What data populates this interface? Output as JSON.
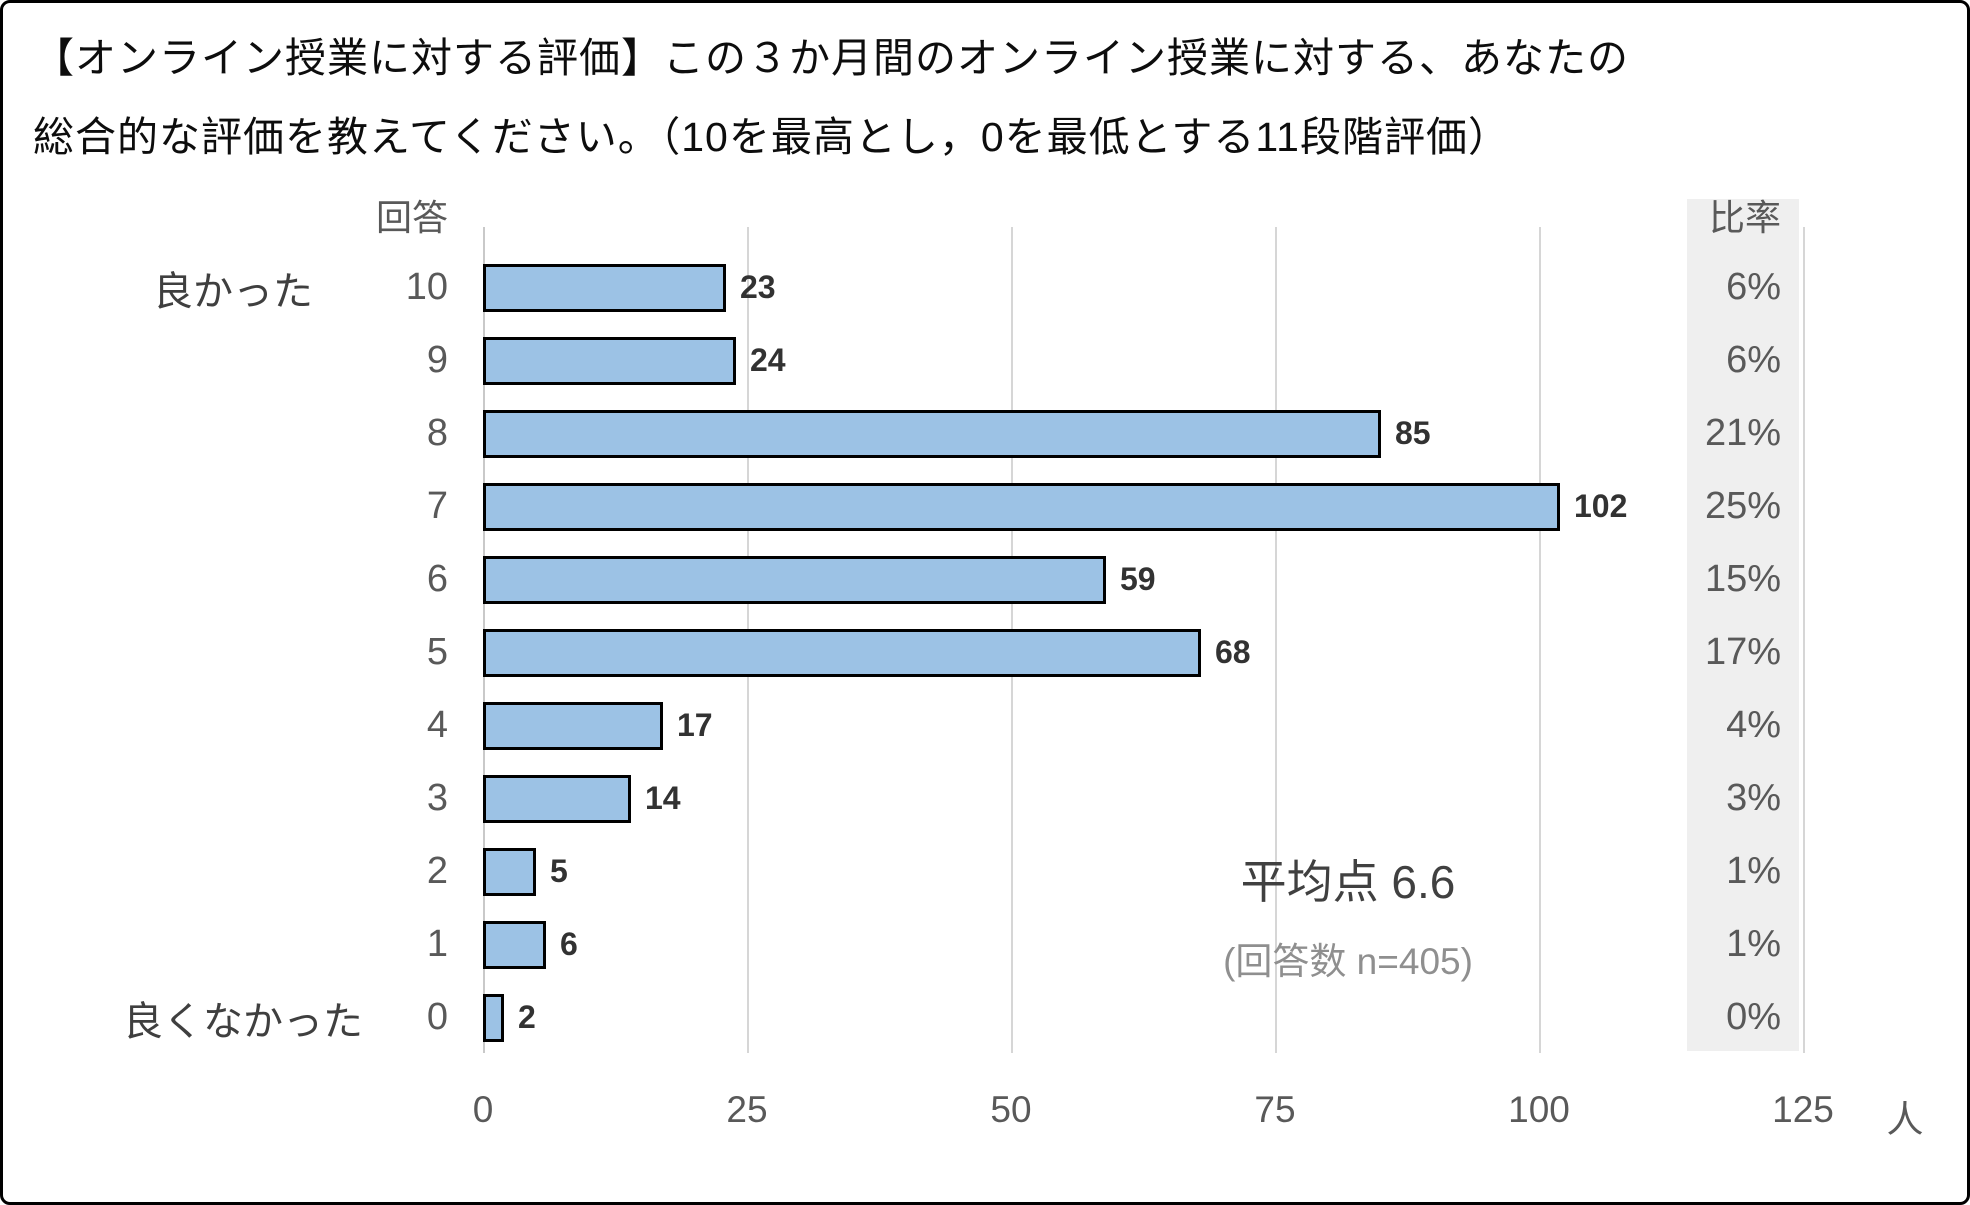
{
  "title": {
    "line1": "【オンライン授業に対する評価】この３か月間のオンライン授業に対する、あなたの",
    "line2": "総合的な評価を教えてください。（10を最高とし，0を最低とする11段階評価）"
  },
  "chart_data": {
    "type": "bar",
    "orientation": "horizontal",
    "title": "オンライン授業に対する評価（11段階評価）",
    "col_header_left": "回答",
    "col_header_right": "比率",
    "side_label_top": "良かった",
    "side_label_bottom": "良くなかった",
    "categories": [
      "10",
      "9",
      "8",
      "7",
      "6",
      "5",
      "4",
      "3",
      "2",
      "1",
      "0"
    ],
    "values": [
      23,
      24,
      85,
      102,
      59,
      68,
      17,
      14,
      5,
      6,
      2
    ],
    "percentages": [
      "6%",
      "6%",
      "21%",
      "25%",
      "15%",
      "17%",
      "4%",
      "3%",
      "1%",
      "1%",
      "0%"
    ],
    "x_ticks": [
      "0",
      "25",
      "50",
      "75",
      "100",
      "125"
    ],
    "x_unit": "人",
    "xlim": [
      0,
      125
    ],
    "grid": true,
    "annotation": {
      "mean_label": "平均点 6.6",
      "n_label": "(回答数 n=405)"
    },
    "bar_color": "#9CC2E5",
    "bar_border_color": "#000000",
    "grid_color": "#D6D6D6",
    "ratio_band_color": "#EFEFEF"
  }
}
